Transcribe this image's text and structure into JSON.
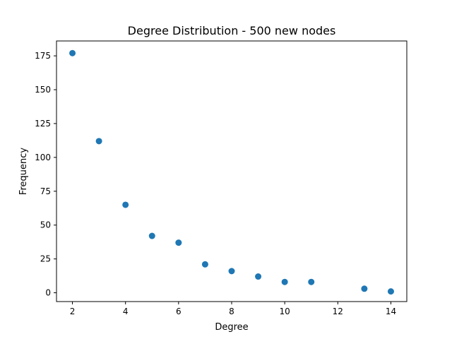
{
  "chart_data": {
    "type": "scatter",
    "title": "Degree Distribution - 500 new nodes",
    "xlabel": "Degree",
    "ylabel": "Frequency",
    "xlim": [
      1.4,
      14.6
    ],
    "ylim": [
      -6.5,
      186
    ],
    "xticks": [
      2,
      4,
      6,
      8,
      10,
      12,
      14
    ],
    "yticks": [
      0,
      25,
      50,
      75,
      100,
      125,
      150,
      175
    ],
    "grid": false,
    "marker_color": "#1f77b4",
    "points": [
      {
        "x": 2,
        "y": 177
      },
      {
        "x": 3,
        "y": 112
      },
      {
        "x": 4,
        "y": 65
      },
      {
        "x": 5,
        "y": 42
      },
      {
        "x": 6,
        "y": 37
      },
      {
        "x": 7,
        "y": 21
      },
      {
        "x": 8,
        "y": 16
      },
      {
        "x": 9,
        "y": 12
      },
      {
        "x": 10,
        "y": 8
      },
      {
        "x": 11,
        "y": 8
      },
      {
        "x": 13,
        "y": 3
      },
      {
        "x": 14,
        "y": 1
      }
    ]
  }
}
